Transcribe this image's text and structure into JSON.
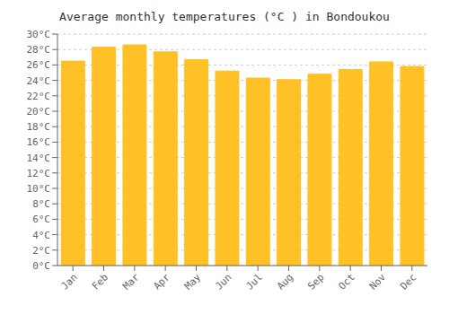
{
  "chart_data": {
    "type": "bar",
    "title": "Average monthly temperatures (°C ) in Bondoukou",
    "categories": [
      "Jan",
      "Feb",
      "Mar",
      "Apr",
      "May",
      "Jun",
      "Jul",
      "Aug",
      "Sep",
      "Oct",
      "Nov",
      "Dec"
    ],
    "values": [
      26.5,
      28.3,
      28.6,
      27.7,
      26.7,
      25.2,
      24.3,
      24.1,
      24.8,
      25.4,
      26.4,
      25.8
    ],
    "color": "#FFC125",
    "ylim": [
      0,
      30
    ],
    "yticks": [
      {
        "value": 0,
        "label": "0°C"
      },
      {
        "value": 2,
        "label": "2°C"
      },
      {
        "value": 4,
        "label": "4°C"
      },
      {
        "value": 6,
        "label": "6°C"
      },
      {
        "value": 8,
        "label": "8°C"
      },
      {
        "value": 10,
        "label": "10°C"
      },
      {
        "value": 12,
        "label": "12°C"
      },
      {
        "value": 14,
        "label": "14°C"
      },
      {
        "value": 16,
        "label": "16°C"
      },
      {
        "value": 18,
        "label": "18°C"
      },
      {
        "value": 20,
        "label": "20°C"
      },
      {
        "value": 22,
        "label": "22°C"
      },
      {
        "value": 24,
        "label": "24°C"
      },
      {
        "value": 26,
        "label": "26°C"
      },
      {
        "value": 28,
        "label": "28°C"
      },
      {
        "value": 30,
        "label": "30°C"
      }
    ],
    "grid": true
  }
}
